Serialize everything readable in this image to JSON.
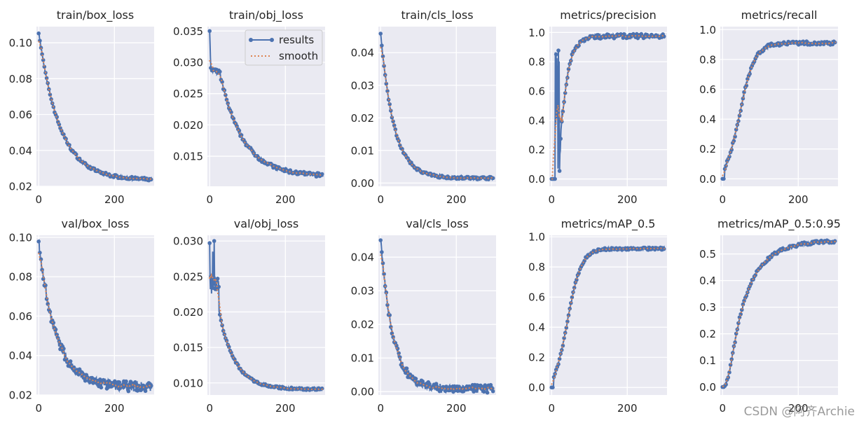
{
  "figure": {
    "legend": {
      "results_label": "results",
      "smooth_label": "smooth"
    },
    "watermark": "CSDN @阿齐Archie",
    "colors": {
      "results": "#4C72B0",
      "smooth": "#DD8452",
      "panel_bg": "#EAEAF2",
      "grid": "#FFFFFF"
    }
  },
  "chart_data": [
    {
      "type": "line",
      "title": "train/box_loss",
      "xlim": [
        -6,
        305
      ],
      "ylim": [
        0.02,
        0.109
      ],
      "yticks": [
        0.02,
        0.04,
        0.06,
        0.08,
        0.1
      ],
      "ytick_labels": [
        "0.02",
        "0.04",
        "0.06",
        "0.08",
        "0.10"
      ],
      "xticks": [
        0,
        200
      ],
      "xtick_labels": [
        "0",
        "200"
      ],
      "series": [
        {
          "name": "results",
          "shape": "exp",
          "start": 0.106,
          "end": 0.0235,
          "tau": 55,
          "noise": 0.0008
        }
      ]
    },
    {
      "type": "line",
      "title": "train/obj_loss",
      "xlim": [
        -6,
        305
      ],
      "ylim": [
        0.0102,
        0.0357
      ],
      "yticks": [
        0.015,
        0.02,
        0.025,
        0.03,
        0.035
      ],
      "ytick_labels": [
        "0.015",
        "0.020",
        "0.025",
        "0.030",
        "0.035"
      ],
      "xticks": [
        0,
        200
      ],
      "xtick_labels": [
        "0",
        "200"
      ],
      "legend": true,
      "series": [
        {
          "name": "results",
          "shape": "exp_spike",
          "start": 0.035,
          "plateau": 0.0288,
          "end": 0.0118,
          "tau": 60,
          "noise": 0.0003
        }
      ]
    },
    {
      "type": "line",
      "title": "train/cls_loss",
      "xlim": [
        -6,
        305
      ],
      "ylim": [
        -0.001,
        0.048
      ],
      "yticks": [
        0.0,
        0.01,
        0.02,
        0.03,
        0.04
      ],
      "ytick_labels": [
        "0.00",
        "0.01",
        "0.02",
        "0.03",
        "0.04"
      ],
      "xticks": [
        0,
        200
      ],
      "xtick_labels": [
        "0",
        "200"
      ],
      "series": [
        {
          "name": "results",
          "shape": "exp",
          "start": 0.046,
          "end": 0.0015,
          "tau": 35,
          "noise": 0.0004
        }
      ]
    },
    {
      "type": "line",
      "title": "metrics/precision",
      "xlim": [
        -6,
        305
      ],
      "ylim": [
        -0.05,
        1.04
      ],
      "yticks": [
        0.0,
        0.2,
        0.4,
        0.6,
        0.8,
        1.0
      ],
      "ytick_labels": [
        "0.0",
        "0.2",
        "0.4",
        "0.6",
        "0.8",
        "1.0"
      ],
      "xticks": [
        0,
        200
      ],
      "xtick_labels": [
        "0",
        "200"
      ],
      "series": [
        {
          "name": "results",
          "shape": "precision",
          "start": 0.0,
          "end": 0.975,
          "noise": 0.015
        }
      ]
    },
    {
      "type": "line",
      "title": "metrics/recall",
      "xlim": [
        -6,
        305
      ],
      "ylim": [
        -0.05,
        1.02
      ],
      "yticks": [
        0.0,
        0.2,
        0.4,
        0.6,
        0.8,
        1.0
      ],
      "ytick_labels": [
        "0.0",
        "0.2",
        "0.4",
        "0.6",
        "0.8",
        "1.0"
      ],
      "xticks": [
        0,
        200
      ],
      "xtick_labels": [
        "0",
        "200"
      ],
      "series": [
        {
          "name": "results",
          "shape": "sigmoid",
          "start": 0.0,
          "end": 0.955,
          "mid": 45,
          "k": 0.05,
          "noise": 0.012
        }
      ]
    },
    {
      "type": "line",
      "title": "val/box_loss",
      "xlim": [
        -6,
        305
      ],
      "ylim": [
        0.02,
        0.101
      ],
      "yticks": [
        0.02,
        0.04,
        0.06,
        0.08,
        0.1
      ],
      "ytick_labels": [
        "0.02",
        "0.04",
        "0.06",
        "0.08",
        "0.10"
      ],
      "xticks": [
        0,
        200
      ],
      "xtick_labels": [
        "0",
        "200"
      ],
      "series": [
        {
          "name": "results",
          "shape": "exp",
          "start": 0.098,
          "end": 0.024,
          "tau": 45,
          "noise": 0.0025
        }
      ]
    },
    {
      "type": "line",
      "title": "val/obj_loss",
      "xlim": [
        -6,
        305
      ],
      "ylim": [
        0.0083,
        0.0308
      ],
      "yticks": [
        0.01,
        0.015,
        0.02,
        0.025,
        0.03
      ],
      "ytick_labels": [
        "0.010",
        "0.015",
        "0.020",
        "0.025",
        "0.030"
      ],
      "xticks": [
        0,
        200
      ],
      "xtick_labels": [
        "0",
        "200"
      ],
      "series": [
        {
          "name": "results",
          "shape": "val_obj",
          "start": 0.0297,
          "end": 0.0091,
          "tau": 42,
          "noise": 0.00015
        }
      ]
    },
    {
      "type": "line",
      "title": "val/cls_loss",
      "xlim": [
        -6,
        305
      ],
      "ylim": [
        -0.001,
        0.0465
      ],
      "yticks": [
        0.0,
        0.01,
        0.02,
        0.03,
        0.04
      ],
      "ytick_labels": [
        "0.00",
        "0.01",
        "0.02",
        "0.03",
        "0.04"
      ],
      "xticks": [
        0,
        200
      ],
      "xtick_labels": [
        "0",
        "200"
      ],
      "series": [
        {
          "name": "results",
          "shape": "exp",
          "start": 0.045,
          "end": 0.0008,
          "tau": 32,
          "noise": 0.0012
        }
      ]
    },
    {
      "type": "line",
      "title": "metrics/mAP_0.5",
      "xlim": [
        -6,
        305
      ],
      "ylim": [
        -0.05,
        1.01
      ],
      "yticks": [
        0.0,
        0.2,
        0.4,
        0.6,
        0.8,
        1.0
      ],
      "ytick_labels": [
        "0.0",
        "0.2",
        "0.4",
        "0.6",
        "0.8",
        "1.0"
      ],
      "xticks": [
        0,
        200
      ],
      "xtick_labels": [
        "0",
        "200"
      ],
      "series": [
        {
          "name": "results",
          "shape": "sigmoid",
          "start": 0.0,
          "end": 0.965,
          "mid": 42,
          "k": 0.055,
          "noise": 0.008
        }
      ]
    },
    {
      "type": "line",
      "title": "metrics/mAP_0.5:0.95",
      "xlim": [
        -6,
        305
      ],
      "ylim": [
        -0.03,
        0.57
      ],
      "yticks": [
        0.0,
        0.1,
        0.2,
        0.3,
        0.4,
        0.5
      ],
      "ytick_labels": [
        "0.0",
        "0.1",
        "0.2",
        "0.3",
        "0.4",
        "0.5"
      ],
      "xticks": [
        0,
        200
      ],
      "xtick_labels": [
        "0",
        "200"
      ],
      "series": [
        {
          "name": "results",
          "shape": "sigmoid_slow",
          "start": 0.0,
          "end": 0.55,
          "mid": 50,
          "k": 0.04,
          "noise": 0.006
        }
      ]
    }
  ]
}
